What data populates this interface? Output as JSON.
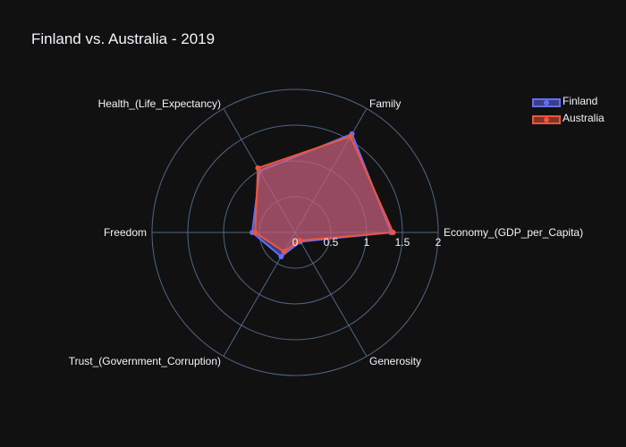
{
  "chart_data": {
    "type": "radar",
    "title": "Finland vs. Australia - 2019",
    "axes": [
      "Economy_(GDP_per_Capita)",
      "Family",
      "Health_(Life_Expectancy)",
      "Freedom",
      "Trust_(Government_Corruption)",
      "Generosity"
    ],
    "radial_range": [
      0,
      2
    ],
    "radial_ticks": [
      "0",
      "0.5",
      "1",
      "1.5",
      "2"
    ],
    "grid": true,
    "legend_position": "top-right",
    "series": [
      {
        "name": "Finland",
        "color": "#636efa",
        "values": [
          1.34,
          1.59,
          0.99,
          0.6,
          0.39,
          0.15
        ]
      },
      {
        "name": "Australia",
        "color": "#ef553b",
        "values": [
          1.37,
          1.55,
          1.04,
          0.56,
          0.31,
          0.13
        ]
      }
    ]
  }
}
